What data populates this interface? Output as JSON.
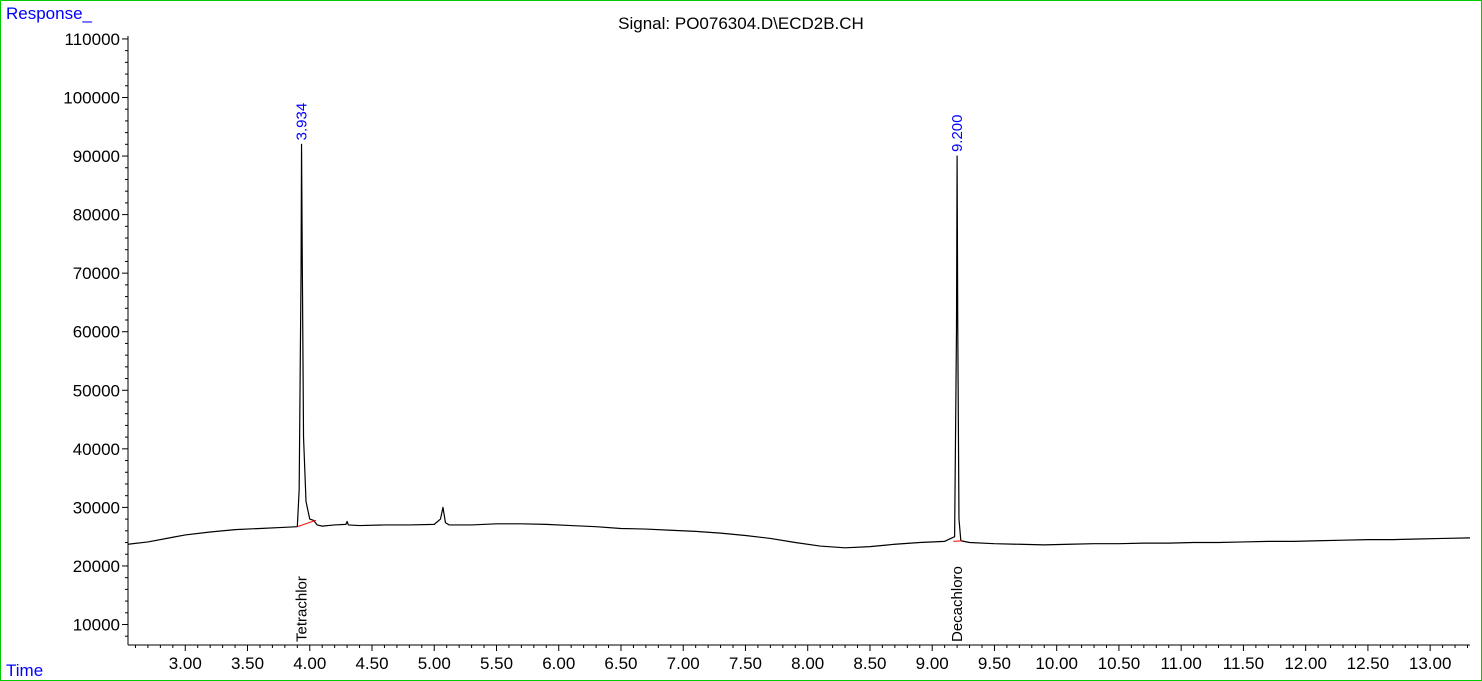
{
  "chart_data": {
    "type": "line",
    "title": "Signal: PO076304.D\\ECD2B.CH",
    "ylabel": "Response_",
    "xlabel": "Time",
    "xlim": [
      2.54,
      13.32
    ],
    "ylim": [
      6500,
      110500
    ],
    "x_ticks": [
      3.0,
      3.5,
      4.0,
      4.5,
      5.0,
      5.5,
      6.0,
      6.5,
      7.0,
      7.5,
      8.0,
      8.5,
      9.0,
      9.5,
      10.0,
      10.5,
      11.0,
      11.5,
      12.0,
      12.5,
      13.0
    ],
    "x_tick_labels": [
      "3.00",
      "3.50",
      "4.00",
      "4.50",
      "5.00",
      "5.50",
      "6.00",
      "6.50",
      "7.00",
      "7.50",
      "8.00",
      "8.50",
      "9.00",
      "9.50",
      "10.00",
      "10.50",
      "11.00",
      "11.50",
      "12.00",
      "12.50",
      "13.00"
    ],
    "y_ticks": [
      10000,
      20000,
      30000,
      40000,
      50000,
      60000,
      70000,
      80000,
      90000,
      100000,
      110000
    ],
    "y_tick_labels": [
      "10000",
      "20000",
      "30000",
      "40000",
      "50000",
      "60000",
      "70000",
      "80000",
      "90000",
      "100000",
      "110000"
    ],
    "series": [
      {
        "x": [
          2.54,
          2.7,
          2.9,
          3.0,
          3.2,
          3.4,
          3.6,
          3.8,
          3.9,
          3.915,
          3.93,
          3.934,
          3.94,
          3.95,
          3.97,
          4.0,
          4.03,
          4.06,
          4.1,
          4.2,
          4.29,
          4.3,
          4.31,
          4.4,
          4.6,
          4.8,
          5.0,
          5.05,
          5.07,
          5.09,
          5.12,
          5.3,
          5.5,
          5.7,
          5.9,
          6.1,
          6.3,
          6.5,
          6.7,
          6.9,
          7.1,
          7.3,
          7.5,
          7.7,
          7.9,
          8.1,
          8.3,
          8.5,
          8.7,
          8.9,
          9.1,
          9.18,
          9.195,
          9.2,
          9.205,
          9.215,
          9.23,
          9.3,
          9.5,
          9.7,
          9.9,
          10.1,
          10.3,
          10.5,
          10.7,
          10.9,
          11.1,
          11.3,
          11.5,
          11.7,
          11.9,
          12.1,
          12.3,
          12.5,
          12.7,
          12.9,
          13.1,
          13.32
        ],
        "y": [
          23700,
          24100,
          24900,
          25300,
          25800,
          26200,
          26400,
          26600,
          26700,
          33000,
          70000,
          92000,
          72000,
          42000,
          31000,
          28000,
          27800,
          27000,
          26800,
          27000,
          27100,
          27600,
          27000,
          26900,
          27000,
          27000,
          27100,
          28000,
          30000,
          27400,
          27000,
          27000,
          27200,
          27200,
          27100,
          26900,
          26700,
          26400,
          26300,
          26100,
          25900,
          25600,
          25200,
          24700,
          24000,
          23400,
          23100,
          23300,
          23700,
          24000,
          24200,
          25000,
          60000,
          90000,
          62000,
          28000,
          24300,
          24000,
          23800,
          23700,
          23600,
          23700,
          23800,
          23800,
          23900,
          23900,
          24000,
          24000,
          24100,
          24200,
          24200,
          24300,
          24400,
          24500,
          24500,
          24600,
          24700,
          24800
        ]
      }
    ],
    "peaks": [
      {
        "rt": 3.934,
        "label": "3.934",
        "height": 92000,
        "compound": "Tetrachlor",
        "base_start": [
          3.9,
          26700
        ],
        "base_end": [
          4.05,
          27800
        ]
      },
      {
        "rt": 9.2,
        "label": "9.200",
        "height": 90000,
        "compound": "Decachloro",
        "base_start": [
          9.17,
          24200
        ],
        "base_end": [
          9.24,
          24300
        ]
      }
    ],
    "colors": {
      "trace": "#000000",
      "baseline": "#ff0000",
      "retention_label": "#0000ff",
      "frame": "#00cc00",
      "corner_label": "#0000ff"
    },
    "grid": false,
    "legend": "none"
  }
}
